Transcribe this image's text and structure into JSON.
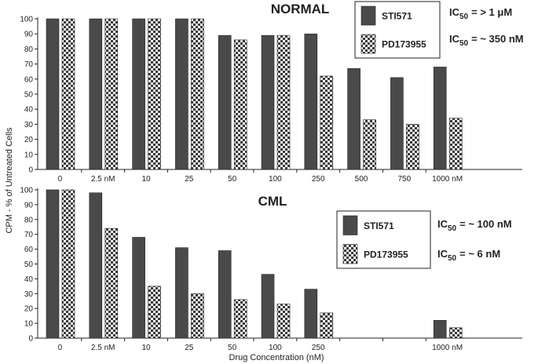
{
  "chart_data": {
    "type": "bar",
    "ylabel": "CPM - % of Untreated  Cells",
    "xlabel": "Drug Concentration (nM)",
    "ylim": [
      0,
      100
    ],
    "yticks": [
      "0",
      "10",
      "20",
      "30",
      "40",
      "50",
      "60",
      "70",
      "80",
      "90",
      "100"
    ],
    "colors": {
      "STI571": "#4a4a4a",
      "PD173955": "checkered"
    },
    "panels": [
      {
        "title": "NORMAL",
        "categories": [
          "0",
          "2.5 nM",
          "10",
          "25",
          "50",
          "100",
          "250",
          "500",
          "750",
          "1000 nM"
        ],
        "series": [
          {
            "name": "STI571",
            "values": [
              100,
              100,
              100,
              100,
              89,
              89,
              90,
              67,
              61,
              68
            ]
          },
          {
            "name": "PD173955",
            "values": [
              100,
              100,
              100,
              100,
              86,
              89,
              62,
              33,
              30,
              34
            ]
          }
        ],
        "legend": [
          "STI571",
          "PD173955"
        ],
        "ic50": [
          {
            "prefix": "IC",
            "sub": "50",
            "text": "= > 1 μM"
          },
          {
            "prefix": "IC",
            "sub": "50",
            "text": "= ~ 350 nM"
          }
        ]
      },
      {
        "title": "CML",
        "categories": [
          "0",
          "2.5 nM",
          "10",
          "25",
          "50",
          "100",
          "250",
          "",
          "",
          "1000 nM"
        ],
        "series": [
          {
            "name": "STI571",
            "values": [
              100,
              98,
              68,
              61,
              59,
              43,
              33,
              null,
              null,
              12
            ]
          },
          {
            "name": "PD173955",
            "values": [
              100,
              74,
              35,
              30,
              26,
              23,
              17,
              null,
              null,
              7
            ]
          }
        ],
        "legend": [
          "STI571",
          "PD173955"
        ],
        "ic50": [
          {
            "prefix": "IC",
            "sub": "50",
            "text": "= ~ 100 nM"
          },
          {
            "prefix": "IC",
            "sub": "50",
            "text": "= ~ 6 nM"
          }
        ]
      }
    ]
  }
}
